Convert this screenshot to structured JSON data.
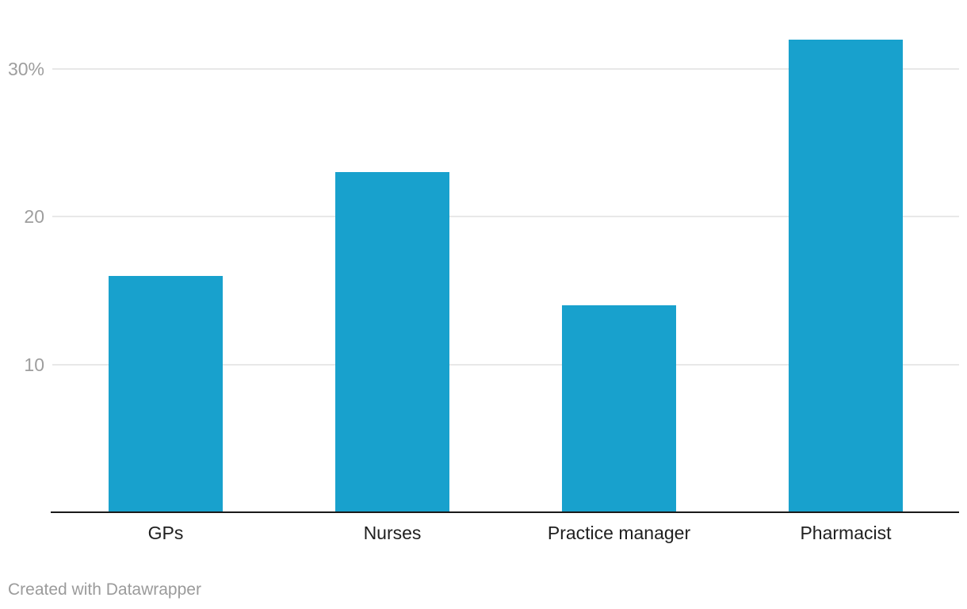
{
  "chart_data": {
    "type": "bar",
    "title": "",
    "xlabel": "",
    "ylabel": "",
    "categories": [
      "GPs",
      "Nurses",
      "Practice manager",
      "Pharmacist"
    ],
    "values": [
      16,
      23,
      14,
      32
    ],
    "unit": "%",
    "ylim": [
      0,
      34.6
    ],
    "yticks": [
      {
        "value": 10,
        "label": "10"
      },
      {
        "value": 20,
        "label": "20"
      },
      {
        "value": 30,
        "label": "30%"
      }
    ],
    "grid": "horizontal",
    "legend": "none",
    "bar_color": "#18a1cd"
  },
  "colors": {
    "bar": "#18a1cd",
    "gridline": "#e8e8e8",
    "axis_line": "#1a1a1a",
    "tick_label": "#9e9e9e",
    "category_label": "#202020",
    "footer_text": "#9b9b9b",
    "background": "#ffffff"
  },
  "footer": {
    "attribution": "Created with Datawrapper"
  }
}
